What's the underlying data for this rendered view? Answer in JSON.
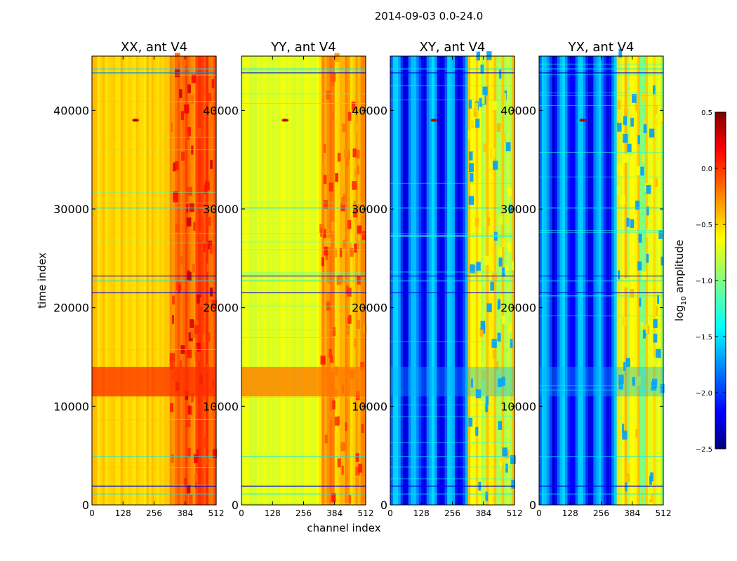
{
  "chart_data": {
    "type": "heatmap",
    "title": "2014-09-03 0.0-24.0",
    "xlabel": "channel index",
    "ylabel": "time index",
    "xlim": [
      0,
      512
    ],
    "ylim": [
      0,
      45500
    ],
    "x_ticks": [
      0,
      128,
      256,
      384,
      512
    ],
    "y_ticks": [
      0,
      10000,
      20000,
      30000,
      40000
    ],
    "x_tick_labels": [
      "0",
      "128",
      "256",
      "384",
      "512"
    ],
    "y_tick_labels": [
      "0",
      "10000",
      "20000",
      "30000",
      "40000"
    ],
    "panels": [
      {
        "title": "XX, ant V4",
        "pol": "XX"
      },
      {
        "title": "YY, ant V4",
        "pol": "YY"
      },
      {
        "title": "XY, ant V4",
        "pol": "XY"
      },
      {
        "title": "YX, ant V4",
        "pol": "YX"
      }
    ],
    "colorbar": {
      "label_main": "log",
      "label_sub": "10",
      "label_tail": " amplitude",
      "range": [
        -2.5,
        0.5
      ],
      "ticks": [
        -2.5,
        -2.0,
        -1.5,
        -1.0,
        -0.5,
        0.0,
        0.5
      ],
      "tick_labels": [
        "−2.5",
        "−2.0",
        "−1.5",
        "−1.0",
        "−0.5",
        "0.0",
        "0.5"
      ]
    },
    "cold_rows": [
      1100,
      1900,
      4900,
      21500,
      22700,
      23200,
      30100,
      43800,
      44200
    ],
    "bright_band": [
      11000,
      14000
    ],
    "rfi_channels": [
      320,
      512
    ]
  }
}
